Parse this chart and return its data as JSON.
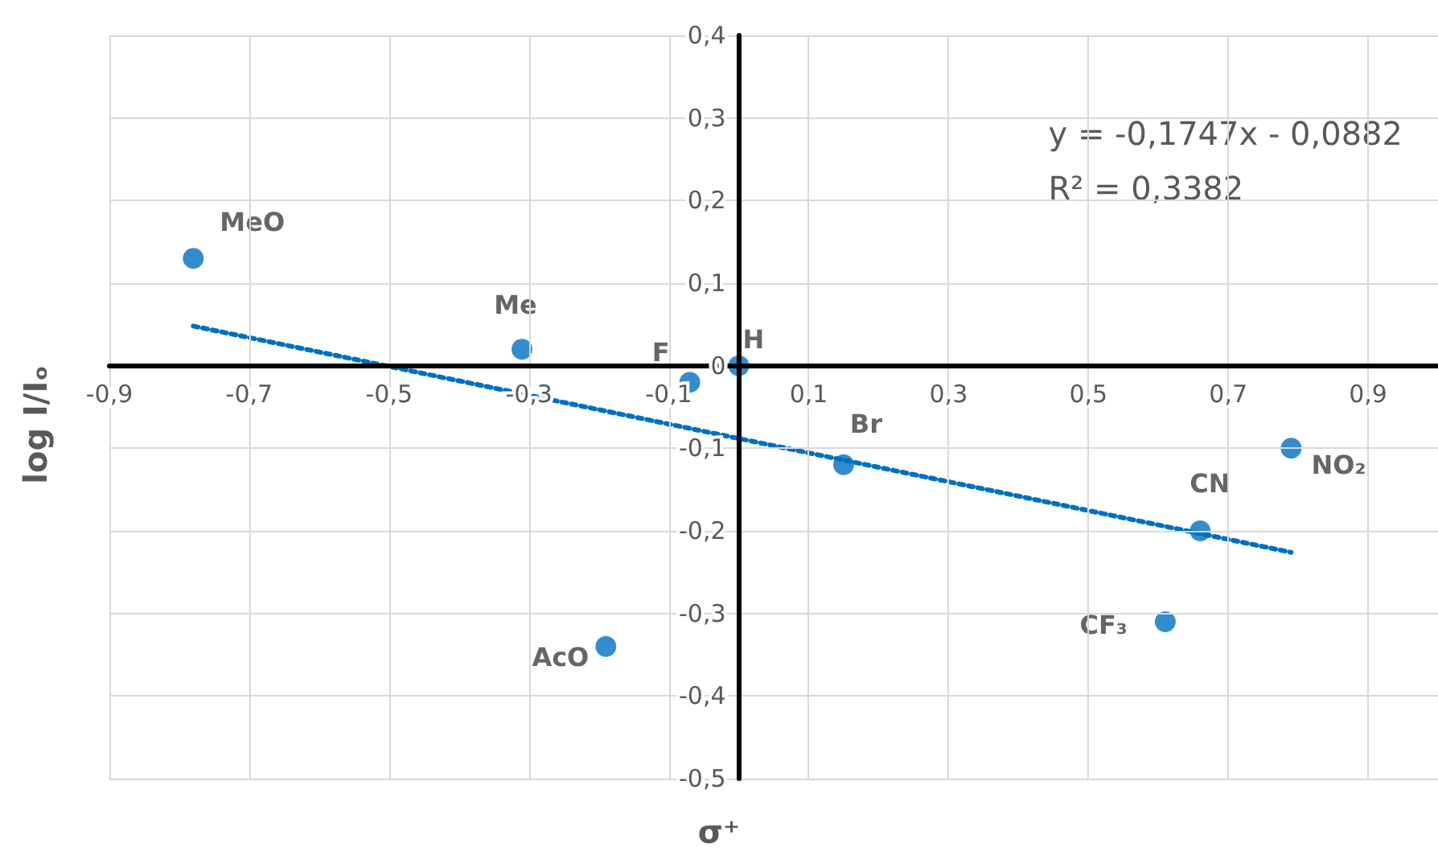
{
  "chart_data": {
    "type": "scatter",
    "xlabel": "σ⁺",
    "ylabel": "log I/Iₒ",
    "series": [
      {
        "color": "#0070c0",
        "marker": "circle",
        "x": [
          -0.78,
          -0.31,
          -0.07,
          0,
          0.15,
          -0.19,
          0.61,
          0.66,
          0.79
        ],
        "values": [
          0.13,
          0.02,
          -0.02,
          0,
          -0.12,
          -0.34,
          -0.31,
          -0.2,
          -0.1
        ],
        "value_labels": [
          "MeO",
          "Me",
          "F",
          "H",
          "Br",
          "AcO",
          "CF₃",
          "CN",
          "NO₂"
        ]
      },
      {
        "type": "line",
        "color": "#0070c0",
        "marker": "none",
        "line_style": "dotted",
        "x": [
          -0.78,
          0.79
        ],
        "values": [
          0.048,
          -0.226
        ]
      }
    ],
    "annotations": [
      "y = -0,1747x - 0,0882",
      "R² = 0,3382"
    ],
    "xlim": [
      -0.9,
      1.0
    ],
    "ylim": [
      -0.5,
      0.4
    ],
    "xticks": [
      {
        "value": -0.9,
        "label": "-0,9"
      },
      {
        "value": -0.7,
        "label": "-0,7"
      },
      {
        "value": -0.5,
        "label": "-0,5"
      },
      {
        "value": -0.3,
        "label": "-0,3"
      },
      {
        "value": -0.1,
        "label": "-0,1"
      },
      {
        "value": 0.1,
        "label": "0,1"
      },
      {
        "value": 0.3,
        "label": "0,3"
      },
      {
        "value": 0.5,
        "label": "0,5"
      },
      {
        "value": 0.7,
        "label": "0,7"
      },
      {
        "value": 0.9,
        "label": "0,9"
      }
    ],
    "yticks": [
      {
        "value": -0.5,
        "label": "-0,5"
      },
      {
        "value": -0.4,
        "label": "-0,4"
      },
      {
        "value": -0.3,
        "label": "-0,3"
      },
      {
        "value": -0.2,
        "label": "-0,2"
      },
      {
        "value": -0.1,
        "label": "-0,1"
      },
      0,
      {
        "value": 0.1,
        "label": "0,1"
      },
      {
        "value": 0.2,
        "label": "0,2"
      },
      {
        "value": 0.3,
        "label": "0,3"
      },
      {
        "value": 0.4,
        "label": "0,4"
      }
    ],
    "grid": true
  }
}
